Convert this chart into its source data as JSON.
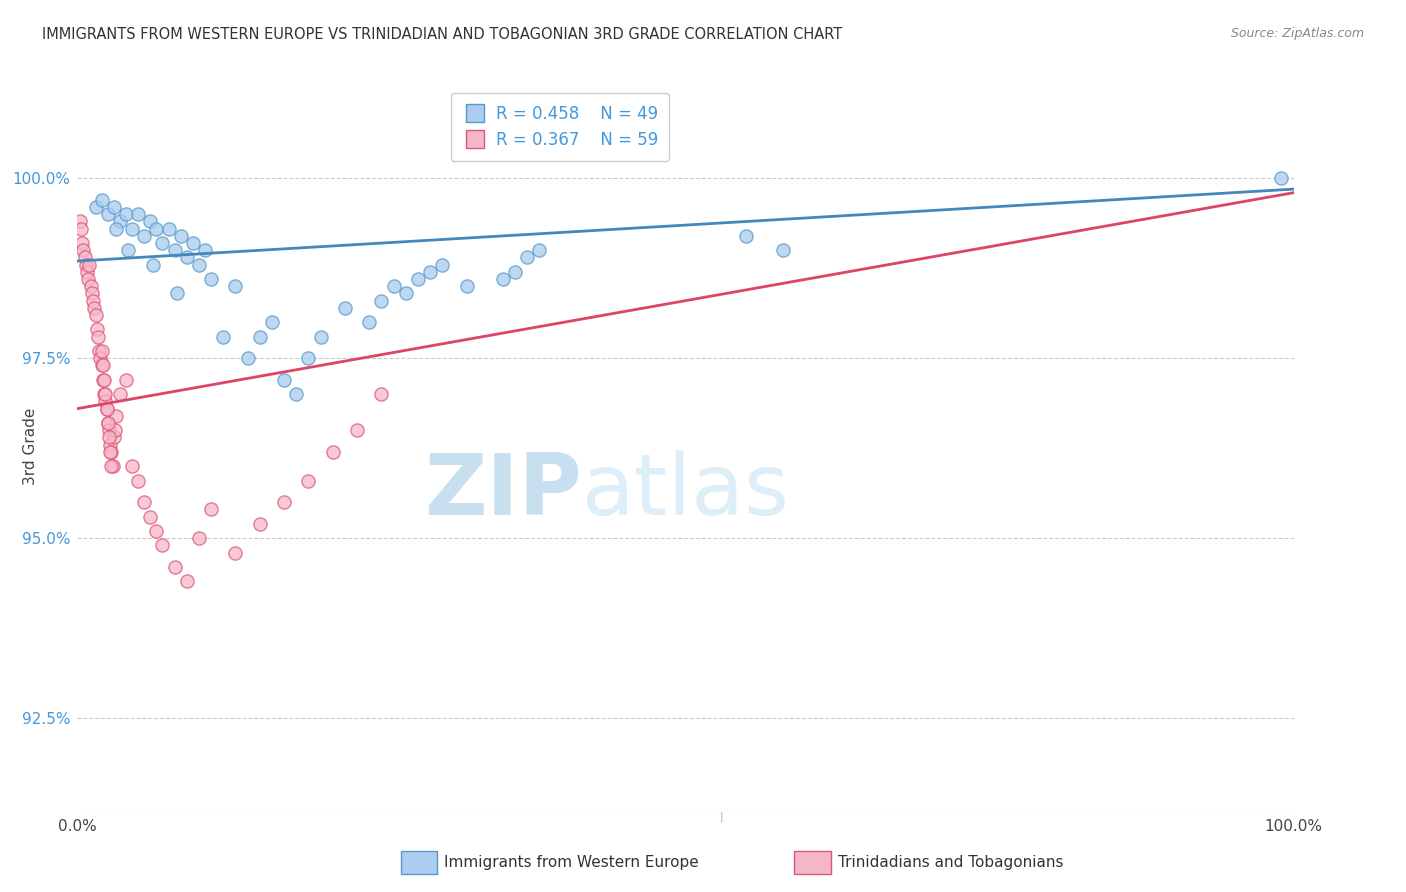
{
  "title": "IMMIGRANTS FROM WESTERN EUROPE VS TRINIDADIAN AND TOBAGONIAN 3RD GRADE CORRELATION CHART",
  "source": "Source: ZipAtlas.com",
  "ylabel": "3rd Grade",
  "y_ticks": [
    92.5,
    95.0,
    97.5,
    100.0
  ],
  "y_tick_labels": [
    "92.5%",
    "95.0%",
    "97.5%",
    "100.0%"
  ],
  "x_range": [
    0.0,
    100.0
  ],
  "y_range": [
    91.2,
    101.3
  ],
  "legend_blue_label": "Immigrants from Western Europe",
  "legend_pink_label": "Trinidadians and Tobagonians",
  "R_blue": 0.458,
  "N_blue": 49,
  "R_pink": 0.367,
  "N_pink": 59,
  "blue_color": "#aaccee",
  "pink_color": "#f5b8c8",
  "blue_edge_color": "#5599cc",
  "pink_edge_color": "#dd5577",
  "blue_line_color": "#4488bb",
  "pink_line_color": "#dd4466",
  "watermark_zip": "ZIP",
  "watermark_atlas": "atlas",
  "blue_scatter_x": [
    1.5,
    2.0,
    2.5,
    3.0,
    3.5,
    4.0,
    4.5,
    5.0,
    5.5,
    6.0,
    6.5,
    7.0,
    7.5,
    8.0,
    8.5,
    9.0,
    9.5,
    10.0,
    10.5,
    11.0,
    12.0,
    13.0,
    14.0,
    15.0,
    16.0,
    17.0,
    18.0,
    19.0,
    20.0,
    22.0,
    24.0,
    25.0,
    26.0,
    27.0,
    28.0,
    29.0,
    30.0,
    32.0,
    35.0,
    36.0,
    37.0,
    38.0,
    55.0,
    58.0,
    99.0,
    3.2,
    4.2,
    6.2,
    8.2
  ],
  "blue_scatter_y": [
    99.6,
    99.7,
    99.5,
    99.6,
    99.4,
    99.5,
    99.3,
    99.5,
    99.2,
    99.4,
    99.3,
    99.1,
    99.3,
    99.0,
    99.2,
    98.9,
    99.1,
    98.8,
    99.0,
    98.6,
    97.8,
    98.5,
    97.5,
    97.8,
    98.0,
    97.2,
    97.0,
    97.5,
    97.8,
    98.2,
    98.0,
    98.3,
    98.5,
    98.4,
    98.6,
    98.7,
    98.8,
    98.5,
    98.6,
    98.7,
    98.9,
    99.0,
    99.2,
    99.0,
    100.0,
    99.3,
    99.0,
    98.8,
    98.4
  ],
  "pink_scatter_x": [
    0.2,
    0.3,
    0.4,
    0.5,
    0.6,
    0.7,
    0.8,
    0.9,
    1.0,
    1.1,
    1.2,
    1.3,
    1.4,
    1.5,
    1.6,
    1.7,
    1.8,
    1.9,
    2.0,
    2.1,
    2.2,
    2.3,
    2.4,
    2.5,
    2.6,
    2.7,
    2.8,
    2.9,
    3.0,
    3.1,
    3.2,
    3.5,
    4.0,
    4.5,
    5.0,
    5.5,
    6.0,
    6.5,
    7.0,
    8.0,
    9.0,
    10.0,
    11.0,
    13.0,
    15.0,
    17.0,
    19.0,
    21.0,
    23.0,
    25.0,
    2.0,
    2.1,
    2.2,
    2.3,
    2.4,
    2.5,
    2.6,
    2.7,
    2.8
  ],
  "pink_scatter_y": [
    99.4,
    99.3,
    99.1,
    99.0,
    98.9,
    98.8,
    98.7,
    98.6,
    98.8,
    98.5,
    98.4,
    98.3,
    98.2,
    98.1,
    97.9,
    97.8,
    97.6,
    97.5,
    97.4,
    97.2,
    97.0,
    96.9,
    96.8,
    96.6,
    96.5,
    96.3,
    96.2,
    96.0,
    96.4,
    96.5,
    96.7,
    97.0,
    97.2,
    96.0,
    95.8,
    95.5,
    95.3,
    95.1,
    94.9,
    94.6,
    94.4,
    95.0,
    95.4,
    94.8,
    95.2,
    95.5,
    95.8,
    96.2,
    96.5,
    97.0,
    97.6,
    97.4,
    97.2,
    97.0,
    96.8,
    96.6,
    96.4,
    96.2,
    96.0
  ],
  "blue_trendline_x": [
    0,
    100
  ],
  "blue_trendline_y": [
    98.85,
    99.85
  ],
  "pink_trendline_x": [
    0,
    100
  ],
  "pink_trendline_y": [
    96.8,
    99.8
  ]
}
